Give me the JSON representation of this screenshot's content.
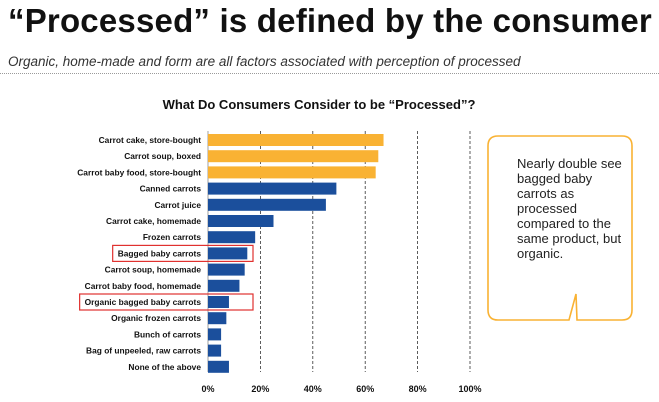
{
  "slide": {
    "title": "“Processed” is defined by the consumer",
    "subtitle": "Organic, home-made and form are all factors associated with perception of processed",
    "callout": "Nearly double see bagged baby carrots as processed compared to the same product, but organic."
  },
  "colors": {
    "accent_orange": "#F9B233",
    "bar_blue": "#1B4F9C",
    "highlight_red": "#E0312F"
  },
  "chart_data": {
    "type": "bar",
    "orientation": "horizontal",
    "title": "What Do Consumers Consider to be “Processed”?",
    "xlabel": "",
    "ylabel": "",
    "xlim": [
      0,
      100
    ],
    "xticks": [
      "0%",
      "20%",
      "40%",
      "60%",
      "80%",
      "100%"
    ],
    "categories": [
      "Carrot cake, store-bought",
      "Carrot soup, boxed",
      "Carrot baby food, store-bought",
      "Canned carrots",
      "Carrot juice",
      "Carrot cake, homemade",
      "Frozen carrots",
      "Bagged baby carrots",
      "Carrot soup, homemade",
      "Carrot baby food, homemade",
      "Organic bagged baby carrots",
      "Organic frozen carrots",
      "Bunch of carrots",
      "Bag of unpeeled, raw carrots",
      "None of the above"
    ],
    "values": [
      67,
      65,
      64,
      49,
      45,
      25,
      18,
      15,
      14,
      12,
      8,
      7,
      5,
      5,
      8
    ],
    "bar_colors": [
      "#F9B233",
      "#F9B233",
      "#F9B233",
      "#1B4F9C",
      "#1B4F9C",
      "#1B4F9C",
      "#1B4F9C",
      "#1B4F9C",
      "#1B4F9C",
      "#1B4F9C",
      "#1B4F9C",
      "#1B4F9C",
      "#1B4F9C",
      "#1B4F9C",
      "#1B4F9C"
    ],
    "highlighted": [
      "Bagged baby carrots",
      "Organic bagged baby carrots"
    ],
    "grid": true
  }
}
